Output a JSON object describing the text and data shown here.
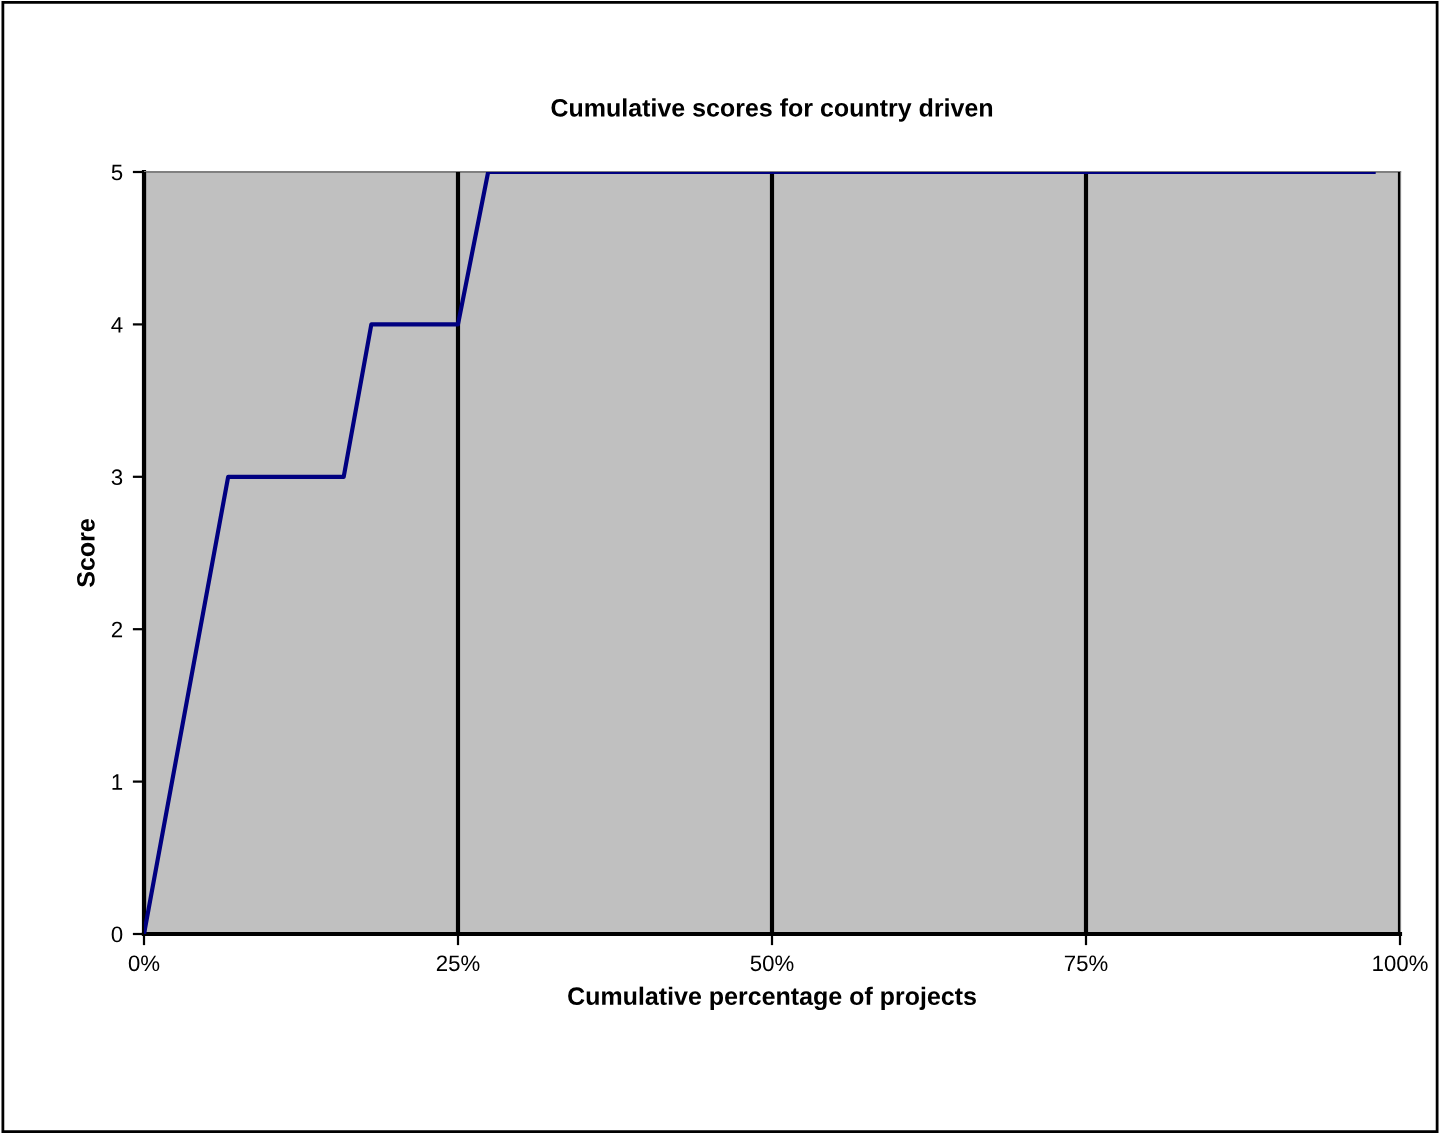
{
  "chart_data": {
    "type": "line",
    "title": "Cumulative scores for country driven",
    "xlabel": "Cumulative percentage of projects",
    "ylabel": "Score",
    "x": [
      0,
      6.7,
      15.9,
      18.1,
      25,
      27.4,
      97.9
    ],
    "series": [
      {
        "color": "#000080",
        "values": [
          0,
          3,
          3,
          4,
          4,
          5,
          5
        ]
      }
    ],
    "xlim": [
      0,
      100
    ],
    "xticks": [
      {
        "value": 0,
        "label": "0%"
      },
      {
        "value": 25,
        "label": "25%"
      },
      {
        "value": 50,
        "label": "50%"
      },
      {
        "value": 75,
        "label": "75%"
      },
      {
        "value": 100,
        "label": "100%"
      }
    ],
    "ylim": [
      0,
      5
    ],
    "yticks": [
      0,
      1,
      2,
      3,
      4,
      5
    ],
    "grid": "x"
  }
}
